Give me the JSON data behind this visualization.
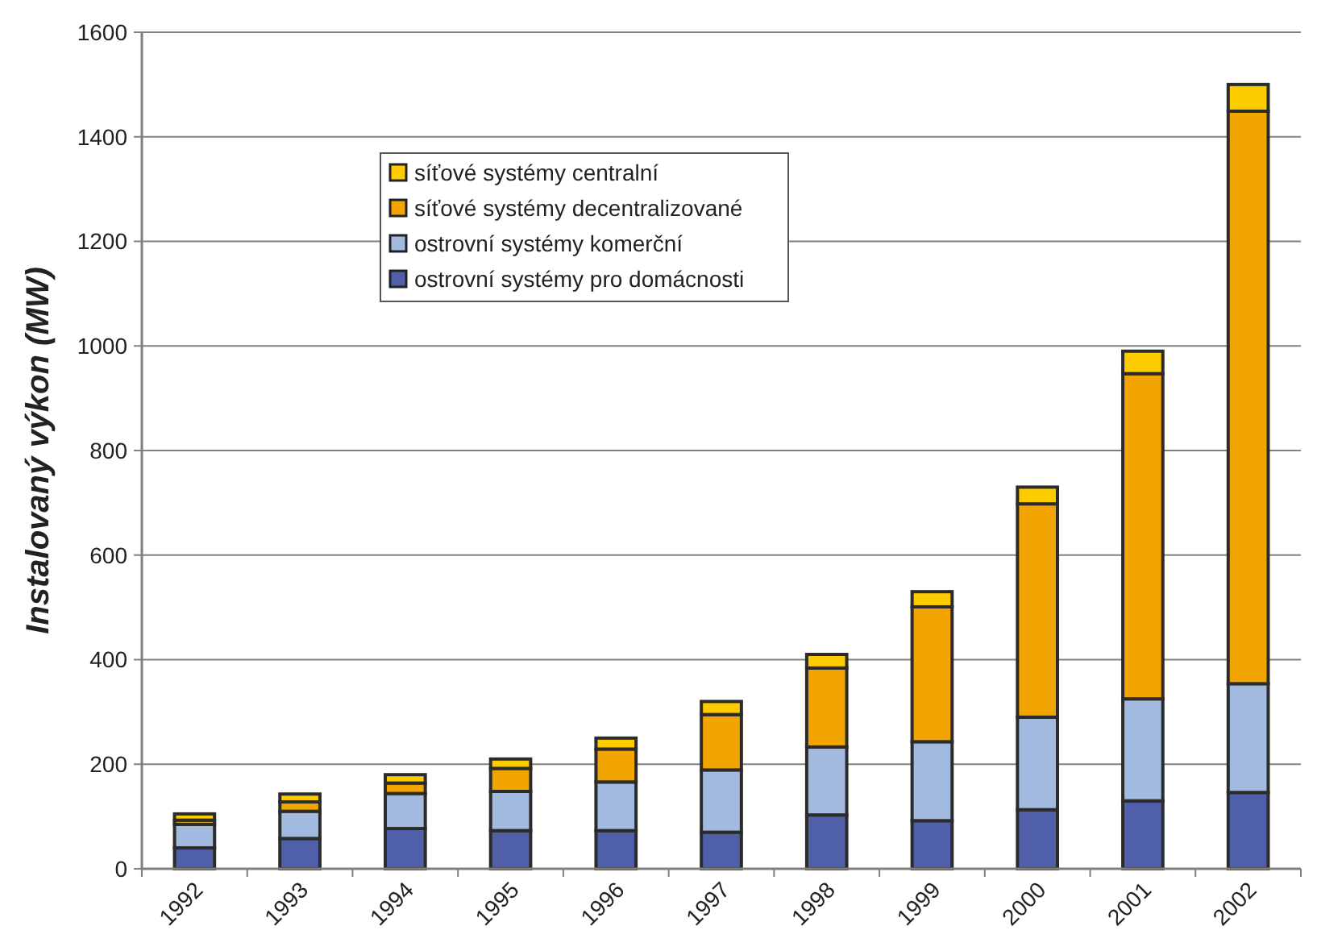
{
  "chart_data": {
    "type": "bar",
    "stacked": true,
    "ylabel": "Instalovaný výkon (MW)",
    "categories": [
      "1992",
      "1993",
      "1994",
      "1995",
      "1996",
      "1997",
      "1998",
      "1999",
      "2000",
      "2001",
      "2002"
    ],
    "series": [
      {
        "name": "ostrovní systémy pro domácnosti",
        "color": "#4f5fa8",
        "values": [
          40,
          58,
          77,
          73,
          73,
          70,
          103,
          92,
          113,
          130,
          146
        ]
      },
      {
        "name": "ostrovní systémy komerční",
        "color": "#a3bae0",
        "values": [
          45,
          52,
          67,
          75,
          93,
          119,
          130,
          151,
          177,
          195,
          208
        ]
      },
      {
        "name": "síťové systémy decentralizované",
        "color": "#f2a500",
        "values": [
          8,
          18,
          20,
          44,
          63,
          106,
          151,
          258,
          408,
          622,
          1095
        ]
      },
      {
        "name": "síťové systémy centralní",
        "color": "#fccc00",
        "values": [
          12,
          15,
          16,
          18,
          21,
          25,
          26,
          29,
          32,
          43,
          51
        ]
      }
    ],
    "ylim": [
      0,
      1600
    ],
    "yticks": [
      0,
      200,
      400,
      600,
      800,
      1000,
      1200,
      1400,
      1600
    ],
    "grid": "y",
    "legend": "top left"
  }
}
